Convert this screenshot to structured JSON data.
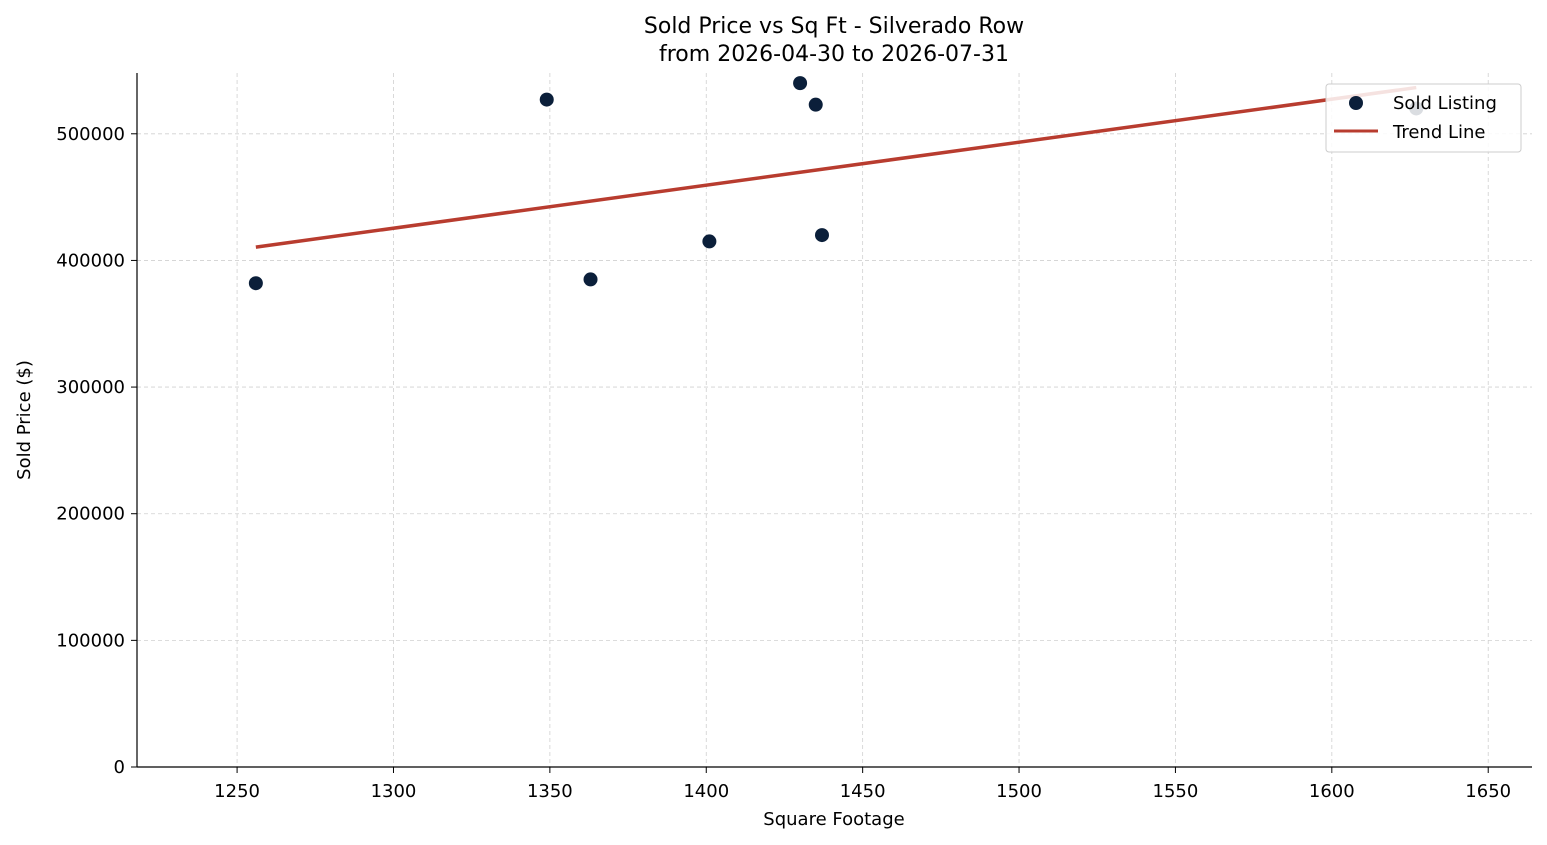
{
  "chart_data": {
    "type": "scatter",
    "title": "Sold Price vs Sq Ft - Silverado Row",
    "subtitle": "from 2026-04-30 to 2026-07-31",
    "xlabel": "Square Footage",
    "ylabel": "Sold Price ($)",
    "xlim": [
      1218,
      1664
    ],
    "ylim": [
      0,
      548000
    ],
    "x_ticks": [
      1250,
      1300,
      1350,
      1400,
      1450,
      1500,
      1550,
      1600,
      1650
    ],
    "y_ticks": [
      0,
      100000,
      200000,
      300000,
      400000,
      500000
    ],
    "grid": true,
    "legend_position": "upper right",
    "series": [
      {
        "name": "Sold Listing",
        "kind": "scatter",
        "color": "#0b1f3a",
        "points": [
          {
            "x": 1256,
            "y": 382000
          },
          {
            "x": 1349,
            "y": 527000
          },
          {
            "x": 1363,
            "y": 385000
          },
          {
            "x": 1401,
            "y": 415000
          },
          {
            "x": 1430,
            "y": 540000
          },
          {
            "x": 1435,
            "y": 523000
          },
          {
            "x": 1437,
            "y": 420000
          },
          {
            "x": 1627,
            "y": 520000
          }
        ]
      },
      {
        "name": "Trend Line",
        "kind": "line",
        "color": "#b83c2f",
        "points": [
          {
            "x": 1256,
            "y": 410500
          },
          {
            "x": 1627,
            "y": 536500
          }
        ]
      }
    ]
  }
}
